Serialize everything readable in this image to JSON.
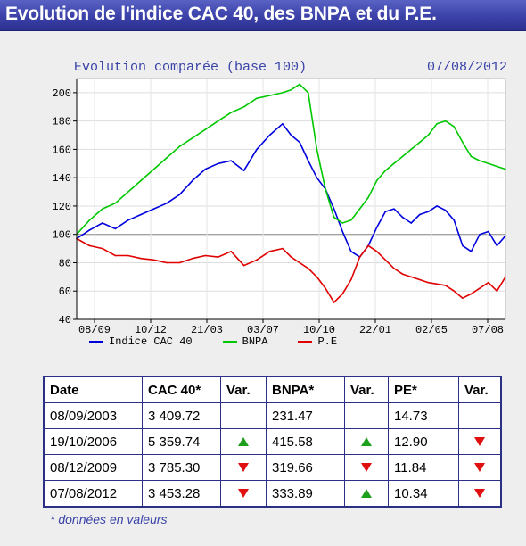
{
  "header": {
    "title": "Evolution de l'indice CAC 40, des BNPA et du P.E."
  },
  "chart_data": {
    "type": "line",
    "title": "Evolution comparée (base 100)",
    "date_label": "07/08/2012",
    "xlabel": "",
    "ylabel": "",
    "ylim": [
      40,
      210
    ],
    "yticks": [
      40,
      60,
      80,
      100,
      120,
      140,
      160,
      180,
      200
    ],
    "x_tick_labels": [
      "08/09",
      "10/12",
      "21/03",
      "03/07",
      "10/10",
      "22/01",
      "02/05",
      "07/08"
    ],
    "grid": true,
    "legend_position": "bottom",
    "x_range": [
      0,
      100
    ],
    "series": [
      {
        "name": "Indice CAC 40",
        "color": "#0000dd",
        "x": [
          0,
          3,
          6,
          9,
          12,
          15,
          18,
          21,
          24,
          27,
          30,
          33,
          36,
          39,
          42,
          45,
          48,
          50,
          52,
          54,
          56,
          58,
          60,
          62,
          64,
          66,
          68,
          70,
          72,
          74,
          76,
          78,
          80,
          82,
          84,
          86,
          88,
          90,
          92,
          94,
          96,
          98,
          100
        ],
        "values": [
          97,
          103,
          108,
          104,
          110,
          114,
          118,
          122,
          128,
          138,
          146,
          150,
          152,
          145,
          160,
          170,
          178,
          170,
          165,
          152,
          140,
          132,
          118,
          102,
          88,
          84,
          92,
          105,
          116,
          118,
          112,
          108,
          114,
          116,
          120,
          117,
          110,
          92,
          88,
          100,
          102,
          92,
          99
        ]
      },
      {
        "name": "BNPA",
        "color": "#00c800",
        "x": [
          0,
          3,
          6,
          9,
          12,
          15,
          18,
          21,
          24,
          27,
          30,
          33,
          36,
          39,
          42,
          45,
          48,
          50,
          52,
          54,
          56,
          58,
          60,
          62,
          64,
          66,
          68,
          70,
          72,
          74,
          76,
          78,
          80,
          82,
          84,
          86,
          88,
          90,
          92,
          94,
          96,
          98,
          100
        ],
        "values": [
          100,
          110,
          118,
          122,
          130,
          138,
          146,
          154,
          162,
          168,
          174,
          180,
          186,
          190,
          196,
          198,
          200,
          202,
          206,
          200,
          160,
          132,
          112,
          108,
          110,
          118,
          126,
          138,
          145,
          150,
          155,
          160,
          165,
          170,
          178,
          180,
          176,
          165,
          155,
          152,
          150,
          148,
          146
        ]
      },
      {
        "name": "P.E",
        "color": "#e00000",
        "x": [
          0,
          3,
          6,
          9,
          12,
          15,
          18,
          21,
          24,
          27,
          30,
          33,
          36,
          39,
          42,
          45,
          48,
          50,
          52,
          54,
          56,
          58,
          60,
          62,
          64,
          66,
          68,
          70,
          72,
          74,
          76,
          78,
          80,
          82,
          84,
          86,
          88,
          90,
          92,
          94,
          96,
          98,
          100
        ],
        "values": [
          97,
          92,
          90,
          85,
          85,
          83,
          82,
          80,
          80,
          83,
          85,
          84,
          88,
          78,
          82,
          88,
          90,
          84,
          80,
          76,
          70,
          62,
          52,
          58,
          68,
          84,
          92,
          88,
          82,
          76,
          72,
          70,
          68,
          66,
          65,
          64,
          60,
          55,
          58,
          62,
          66,
          60,
          70
        ]
      }
    ]
  },
  "table": {
    "headers": [
      "Date",
      "CAC 40*",
      "Var.",
      "BNPA*",
      "Var.",
      "PE*",
      "Var."
    ],
    "rows": [
      {
        "date": "08/09/2003",
        "cac": "3 409.72",
        "cac_var": "",
        "bnpa": "231.47",
        "bnpa_var": "",
        "pe": "14.73",
        "pe_var": ""
      },
      {
        "date": "19/10/2006",
        "cac": "5 359.74",
        "cac_var": "up",
        "bnpa": "415.58",
        "bnpa_var": "up",
        "pe": "12.90",
        "pe_var": "down"
      },
      {
        "date": "08/12/2009",
        "cac": "3 785.30",
        "cac_var": "down",
        "bnpa": "319.66",
        "bnpa_var": "down",
        "pe": "11.84",
        "pe_var": "down"
      },
      {
        "date": "07/08/2012",
        "cac": "3 453.28",
        "cac_var": "down",
        "bnpa": "333.89",
        "bnpa_var": "up",
        "pe": "10.34",
        "pe_var": "down"
      }
    ]
  },
  "footnote": "* données en valeurs",
  "colors": {
    "header_bg": "#3b41a8",
    "accent_text": "#3a43a8",
    "up": "#1ea01e",
    "down": "#e01010"
  }
}
